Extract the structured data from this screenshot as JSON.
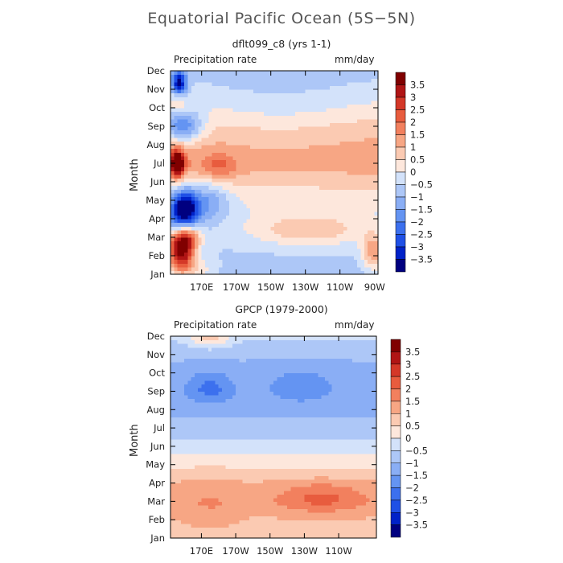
{
  "figure": {
    "title": "Equatorial Pacific Ocean (5S−5N)"
  },
  "palette": {
    "fills": [
      "#000080",
      "#0022c8",
      "#1f50e6",
      "#3c70ee",
      "#6494f2",
      "#8aaef5",
      "#adc7f7",
      "#d3e2fa",
      "#fde7dc",
      "#fbcab2",
      "#f7a684",
      "#f2805e",
      "#e85c3e",
      "#d43828",
      "#b01515",
      "#800000"
    ],
    "outline": "#8a8a8a"
  },
  "chart_data": [
    {
      "type": "heatmap",
      "title": "dflt099_c8 (yrs 1-1)",
      "variable": "Precipitation rate",
      "units": "mm/day",
      "ylabel": "Month",
      "xlabel": "",
      "x_ticks": [
        "170E",
        "170W",
        "150W",
        "130W",
        "110W",
        "90W"
      ],
      "x_tick_values": [
        170,
        190,
        210,
        230,
        250,
        270
      ],
      "xlim": [
        152,
        272
      ],
      "y_ticks": [
        "Jan",
        "Feb",
        "Mar",
        "Apr",
        "May",
        "Jun",
        "Jul",
        "Aug",
        "Sep",
        "Oct",
        "Nov",
        "Dec"
      ],
      "ylim": [
        1,
        12
      ],
      "colorbar": {
        "labels": [
          "3.5",
          "3",
          "2.5",
          "2",
          "1.5",
          "1",
          "0.5",
          "0",
          "−0.5",
          "−1",
          "−1.5",
          "−2",
          "−2.5",
          "−3",
          "−3.5"
        ],
        "levels": [
          -3.5,
          -3,
          -2.5,
          -2,
          -1.5,
          -1,
          -0.5,
          0,
          0.5,
          1,
          1.5,
          2,
          2.5,
          3,
          3.5
        ]
      },
      "field": {
        "base": [
          -0.8,
          -0.6,
          -0.4,
          -0.2,
          0.1,
          0.7,
          1.4,
          1.3,
          1.0,
          0.4,
          -0.2,
          -0.6
        ],
        "features": [
          {
            "lon": 158,
            "month": 2.4,
            "amp": 4.6,
            "sx": 5,
            "sy": 0.7
          },
          {
            "lon": 163,
            "month": 3.1,
            "amp": 2.0,
            "sx": 5,
            "sy": 0.5
          },
          {
            "lon": 163,
            "month": 1.3,
            "amp": 1.2,
            "sx": 10,
            "sy": 0.5
          },
          {
            "lon": 160,
            "month": 4.5,
            "amp": -4.5,
            "sx": 6,
            "sy": 0.8
          },
          {
            "lon": 175,
            "month": 5.0,
            "amp": -1.4,
            "sx": 8,
            "sy": 0.8
          },
          {
            "lon": 156,
            "month": 7.0,
            "amp": 4.2,
            "sx": 3,
            "sy": 0.5
          },
          {
            "lon": 159,
            "month": 9.0,
            "amp": -2.6,
            "sx": 8,
            "sy": 0.6
          },
          {
            "lon": 157,
            "month": 10.5,
            "amp": 1.1,
            "sx": 3,
            "sy": 0.4
          },
          {
            "lon": 157,
            "month": 11.3,
            "amp": -3.4,
            "sx": 3,
            "sy": 0.5
          },
          {
            "lon": 180,
            "month": 6.8,
            "amp": 1.0,
            "sx": 7,
            "sy": 0.5
          },
          {
            "lon": 232,
            "month": 3.4,
            "amp": 1.3,
            "sx": 22,
            "sy": 0.6
          },
          {
            "lon": 270,
            "month": 2.2,
            "amp": 2.0,
            "sx": 5,
            "sy": 0.7
          },
          {
            "lon": 215,
            "month": 9.5,
            "amp": -0.6,
            "sx": 40,
            "sy": 1.5
          }
        ]
      }
    },
    {
      "type": "heatmap",
      "title": "GPCP (1979-2000)",
      "variable": "Precipitation rate",
      "units": "mm/day",
      "ylabel": "Month",
      "xlabel": "",
      "x_ticks": [
        "170E",
        "170W",
        "150W",
        "130W",
        "110W"
      ],
      "x_tick_values": [
        170,
        190,
        210,
        230,
        250
      ],
      "xlim": [
        152,
        272
      ],
      "y_ticks": [
        "Jan",
        "Feb",
        "Mar",
        "Apr",
        "May",
        "Jun",
        "Jul",
        "Aug",
        "Sep",
        "Oct",
        "Nov",
        "Dec"
      ],
      "ylim": [
        1,
        12
      ],
      "colorbar": {
        "labels": [
          "3.5",
          "3",
          "2.5",
          "2",
          "1.5",
          "1",
          "0.5",
          "0",
          "−0.5",
          "−1",
          "−1.5",
          "−2",
          "−2.5",
          "−3",
          "−3.5"
        ],
        "levels": [
          -3.5,
          -3,
          -2.5,
          -2,
          -1.5,
          -1,
          -0.5,
          0,
          0.5,
          1,
          1.5,
          2,
          2.5,
          3,
          3.5
        ]
      },
      "field": {
        "base": [
          0.5,
          0.9,
          1.2,
          1.0,
          0.4,
          -0.3,
          -0.8,
          -1.1,
          -1.3,
          -1.2,
          -0.9,
          -0.4
        ],
        "features": [
          {
            "lon": 240,
            "month": 3.2,
            "amp": 1.0,
            "sx": 18,
            "sy": 0.6
          },
          {
            "lon": 175,
            "month": 9.2,
            "amp": -0.9,
            "sx": 9,
            "sy": 0.6
          },
          {
            "lon": 228,
            "month": 9.3,
            "amp": -0.5,
            "sx": 14,
            "sy": 0.8
          },
          {
            "lon": 175,
            "month": 11.9,
            "amp": 1.1,
            "sx": 8,
            "sy": 0.35
          },
          {
            "lon": 175,
            "month": 2.5,
            "amp": 0.4,
            "sx": 12,
            "sy": 1.2
          }
        ]
      }
    }
  ]
}
